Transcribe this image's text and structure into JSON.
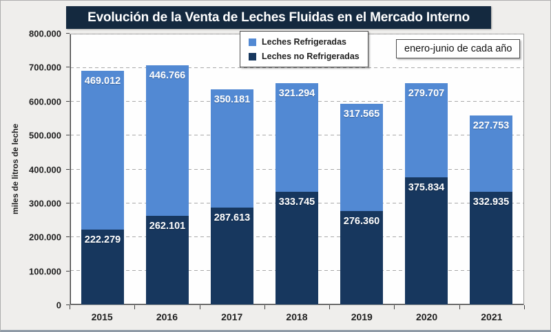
{
  "title": "Evolución de la Venta de Leches Fluidas en el Mercado Interno",
  "annotation_box": "enero-junio de cada año",
  "legend": {
    "items": [
      {
        "label": "Leches Refrigeradas",
        "color": "#5289D3"
      },
      {
        "label": "Leches no Refrigeradas",
        "color": "#17375E"
      }
    ]
  },
  "y_axis": {
    "title": "miles de litros de leche",
    "tick_labels": [
      "0",
      "100.000",
      "200.000",
      "300.000",
      "400.000",
      "500.000",
      "600.000",
      "700.000",
      "800.000"
    ]
  },
  "x_axis": {
    "tick_labels": [
      "2015",
      "2016",
      "2017",
      "2018",
      "2019",
      "2020",
      "2021"
    ]
  },
  "colors": {
    "bar_refrigeradas": "#5289D3",
    "bar_no_refrigeradas": "#17375E",
    "title_background": "#14293F",
    "grid": "#A8A8A8",
    "axis": "#404040",
    "figure_background": "#EFEEEC",
    "plot_background": "#FEFEFE"
  },
  "chart_data": {
    "type": "bar",
    "stacked": true,
    "title": "Evolución de la Venta de Leches Fluidas en el Mercado Interno",
    "subtitle": "enero-junio de cada año",
    "categories": [
      "2015",
      "2016",
      "2017",
      "2018",
      "2019",
      "2020",
      "2021"
    ],
    "series": [
      {
        "name": "Leches no Refrigeradas",
        "color": "#17375E",
        "values": [
          222279,
          262101,
          287613,
          333745,
          276360,
          375834,
          332935
        ],
        "labels": [
          "222.279",
          "262.101",
          "287.613",
          "333.745",
          "276.360",
          "375.834",
          "332.935"
        ]
      },
      {
        "name": "Leches Refrigeradas",
        "color": "#5289D3",
        "values": [
          469012,
          446766,
          350181,
          321294,
          317565,
          279707,
          227753
        ],
        "labels": [
          "469.012",
          "446.766",
          "350.181",
          "321.294",
          "317.565",
          "279.707",
          "227.753"
        ]
      }
    ],
    "totals": [
      691291,
      708867,
      637794,
      655039,
      593925,
      655541,
      560688
    ],
    "xlabel": "",
    "ylabel": "miles de litros de leche",
    "ylim": [
      0,
      800000
    ],
    "ytick_step": 100000,
    "grid": true,
    "legend_position": "top-center"
  }
}
